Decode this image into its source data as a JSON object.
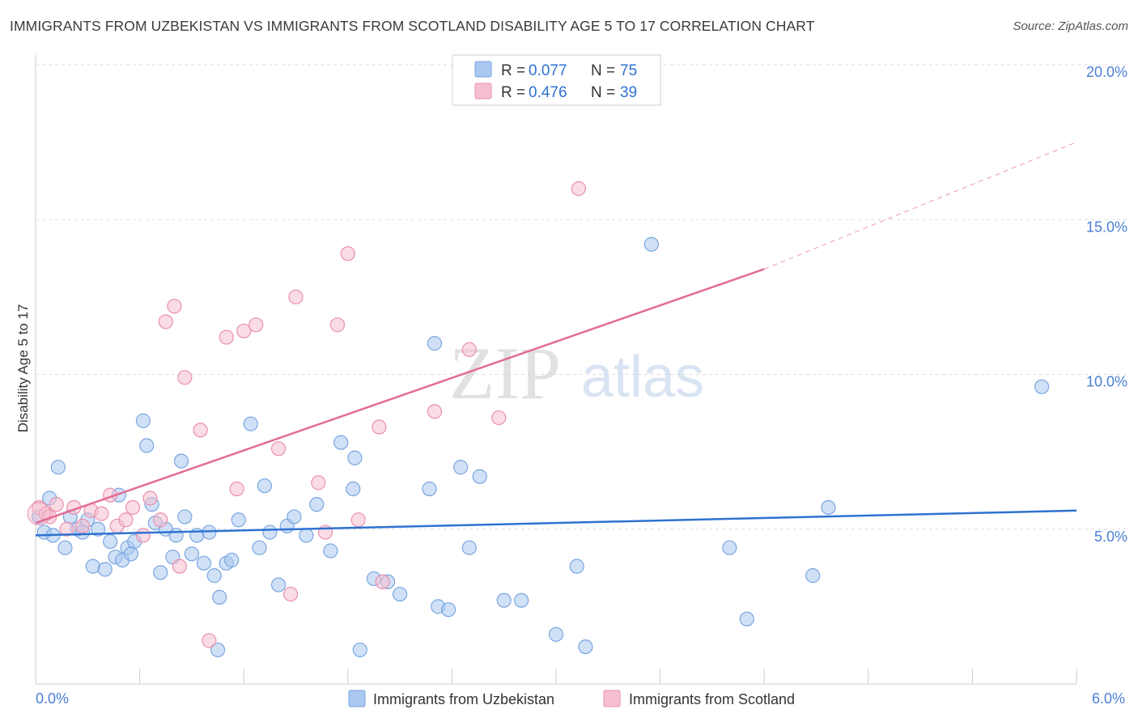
{
  "header": {
    "title": "IMMIGRANTS FROM UZBEKISTAN VS IMMIGRANTS FROM SCOTLAND DISABILITY AGE 5 TO 17 CORRELATION CHART",
    "source": "Source: ZipAtlas.com"
  },
  "watermark": {
    "zip": "ZIP",
    "atlas": "atlas"
  },
  "colors": {
    "uzbekistan_fill": "#aac8f0",
    "uzbekistan_stroke": "#7aa6e0",
    "uzbekistan_line": "#2f72d0",
    "scotland_fill": "#f6bfd0",
    "scotland_stroke": "#ea90ae",
    "scotland_line": "#e36b95",
    "value_text": "#2f72d0",
    "grid": "#dddddd"
  },
  "legend": {
    "rows": [
      {
        "r_label": "R =",
        "r_value": "0.077",
        "n_label": "N =",
        "n_value": "75"
      },
      {
        "r_label": "R =",
        "r_value": "0.476",
        "n_label": "N =",
        "n_value": "39"
      }
    ]
  },
  "chart_data": {
    "type": "scatter",
    "title": "IMMIGRANTS FROM UZBEKISTAN VS IMMIGRANTS FROM SCOTLAND DISABILITY AGE 5 TO 17 CORRELATION CHART",
    "xlabel": "",
    "ylabel": "Disability Age 5 to 17",
    "xlim": [
      0,
      6
    ],
    "ylim": [
      0,
      20
    ],
    "x_tick_labels": [
      "0.0%",
      "6.0%"
    ],
    "y_ticks": [
      {
        "value": 5,
        "label": "5.0%"
      },
      {
        "value": 10,
        "label": "10.0%"
      },
      {
        "value": 15,
        "label": "15.0%"
      },
      {
        "value": 20,
        "label": "20.0%"
      }
    ],
    "grid": true,
    "legend_position": "top-center",
    "series": [
      {
        "name": "Immigrants from Uzbekistan",
        "R": 0.077,
        "N": 75,
        "trend": {
          "x0": 0.0,
          "y0": 4.8,
          "x1": 6.0,
          "y1": 5.6,
          "extend_dashed_to": null
        },
        "points": [
          [
            0.02,
            5.4
          ],
          [
            0.05,
            4.9
          ],
          [
            0.08,
            6.0
          ],
          [
            0.1,
            4.8
          ],
          [
            0.13,
            7.0
          ],
          [
            0.17,
            4.4
          ],
          [
            0.2,
            5.4
          ],
          [
            0.24,
            5.0
          ],
          [
            0.27,
            4.9
          ],
          [
            0.3,
            5.3
          ],
          [
            0.33,
            3.8
          ],
          [
            0.36,
            5.0
          ],
          [
            0.4,
            3.7
          ],
          [
            0.43,
            4.6
          ],
          [
            0.46,
            4.1
          ],
          [
            0.48,
            6.1
          ],
          [
            0.5,
            4.0
          ],
          [
            0.53,
            4.4
          ],
          [
            0.57,
            4.6
          ],
          [
            0.62,
            8.5
          ],
          [
            0.64,
            7.7
          ],
          [
            0.67,
            5.8
          ],
          [
            0.69,
            5.2
          ],
          [
            0.72,
            3.6
          ],
          [
            0.75,
            5.0
          ],
          [
            0.79,
            4.1
          ],
          [
            0.81,
            4.8
          ],
          [
            0.84,
            7.2
          ],
          [
            0.86,
            5.4
          ],
          [
            0.9,
            4.2
          ],
          [
            0.93,
            4.8
          ],
          [
            0.97,
            3.9
          ],
          [
            1.0,
            4.9
          ],
          [
            1.03,
            3.5
          ],
          [
            1.06,
            2.8
          ],
          [
            1.1,
            3.9
          ],
          [
            1.13,
            4.0
          ],
          [
            1.17,
            5.3
          ],
          [
            1.24,
            8.4
          ],
          [
            1.29,
            4.4
          ],
          [
            1.32,
            6.4
          ],
          [
            1.35,
            4.9
          ],
          [
            1.4,
            3.2
          ],
          [
            1.45,
            5.1
          ],
          [
            1.49,
            5.4
          ],
          [
            1.56,
            4.8
          ],
          [
            1.62,
            5.8
          ],
          [
            1.7,
            4.3
          ],
          [
            1.76,
            7.8
          ],
          [
            1.83,
            6.3
          ],
          [
            1.84,
            7.3
          ],
          [
            1.95,
            3.4
          ],
          [
            2.03,
            3.3
          ],
          [
            2.1,
            2.9
          ],
          [
            2.27,
            6.3
          ],
          [
            2.3,
            11.0
          ],
          [
            2.32,
            2.5
          ],
          [
            2.38,
            2.4
          ],
          [
            2.45,
            7.0
          ],
          [
            2.5,
            4.4
          ],
          [
            2.56,
            6.7
          ],
          [
            2.7,
            2.7
          ],
          [
            2.8,
            2.7
          ],
          [
            3.0,
            1.6
          ],
          [
            3.12,
            3.8
          ],
          [
            3.17,
            1.2
          ],
          [
            3.55,
            14.2
          ],
          [
            4.0,
            4.4
          ],
          [
            4.1,
            2.1
          ],
          [
            4.48,
            3.5
          ],
          [
            4.57,
            5.7
          ],
          [
            5.8,
            9.6
          ],
          [
            0.55,
            4.2
          ],
          [
            1.05,
            1.1
          ],
          [
            1.87,
            1.1
          ]
        ]
      },
      {
        "name": "Immigrants from Scotland",
        "R": 0.476,
        "N": 39,
        "trend": {
          "x0": 0.0,
          "y0": 5.2,
          "x1": 4.2,
          "y1": 13.4,
          "extend_dashed_to": {
            "x": 6.0,
            "y": 17.5
          }
        },
        "points": [
          [
            0.02,
            5.7
          ],
          [
            0.06,
            5.5
          ],
          [
            0.08,
            5.4
          ],
          [
            0.12,
            5.8
          ],
          [
            0.18,
            5.0
          ],
          [
            0.22,
            5.7
          ],
          [
            0.27,
            5.1
          ],
          [
            0.32,
            5.6
          ],
          [
            0.38,
            5.5
          ],
          [
            0.43,
            6.1
          ],
          [
            0.47,
            5.1
          ],
          [
            0.52,
            5.3
          ],
          [
            0.56,
            5.7
          ],
          [
            0.62,
            4.8
          ],
          [
            0.66,
            6.0
          ],
          [
            0.72,
            5.3
          ],
          [
            0.75,
            11.7
          ],
          [
            0.8,
            12.2
          ],
          [
            0.83,
            3.8
          ],
          [
            0.86,
            9.9
          ],
          [
            0.95,
            8.2
          ],
          [
            1.0,
            1.4
          ],
          [
            1.1,
            11.2
          ],
          [
            1.16,
            6.3
          ],
          [
            1.2,
            11.4
          ],
          [
            1.27,
            11.6
          ],
          [
            1.4,
            7.6
          ],
          [
            1.47,
            2.9
          ],
          [
            1.5,
            12.5
          ],
          [
            1.63,
            6.5
          ],
          [
            1.67,
            4.9
          ],
          [
            1.74,
            11.6
          ],
          [
            1.8,
            13.9
          ],
          [
            1.86,
            5.3
          ],
          [
            1.98,
            8.3
          ],
          [
            2.0,
            3.3
          ],
          [
            2.3,
            8.8
          ],
          [
            2.5,
            10.8
          ],
          [
            2.67,
            8.6
          ]
        ]
      }
    ]
  },
  "bottom_legend": {
    "items": [
      {
        "label": "Immigrants from Uzbekistan"
      },
      {
        "label": "Immigrants from Scotland"
      }
    ]
  },
  "extra_points": {
    "scotland_outlier": [
      3.13,
      16.0
    ]
  }
}
